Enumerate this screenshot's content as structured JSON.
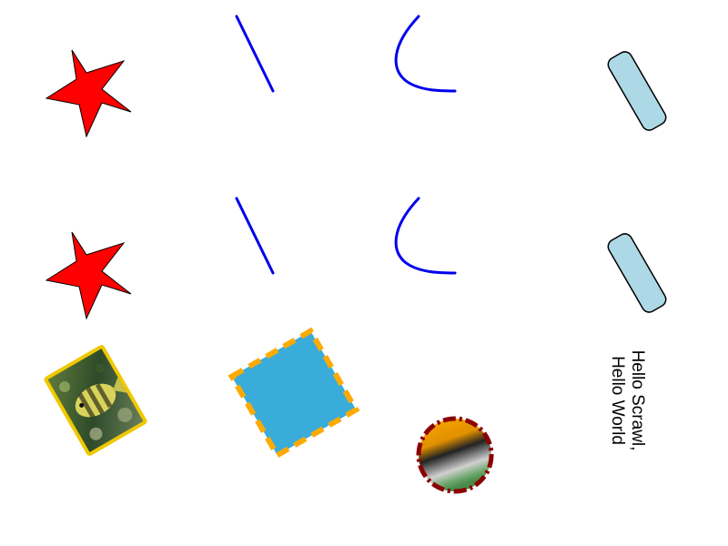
{
  "canvas": {
    "background": "#ffffff"
  },
  "colors": {
    "star_fill": "#ff0000",
    "star_stroke": "#000000",
    "line_stroke": "#0000ee",
    "rect_fill": "#add8e6",
    "rect_stroke": "#000000",
    "square_fill": "#3aacd9",
    "square_border": "#ffaa00",
    "photo_border": "#f0c800",
    "circle_border": "#8b0000",
    "circle_gradient": [
      "#ffaa00",
      "#222222",
      "#d0d0d0",
      "#5a9a5a"
    ],
    "text_color": "#000000"
  },
  "icons": {
    "star": "star-icon",
    "photo": "fish-photo"
  },
  "text": {
    "line1": "Hello Scrawl,",
    "line2": "Hello World"
  }
}
